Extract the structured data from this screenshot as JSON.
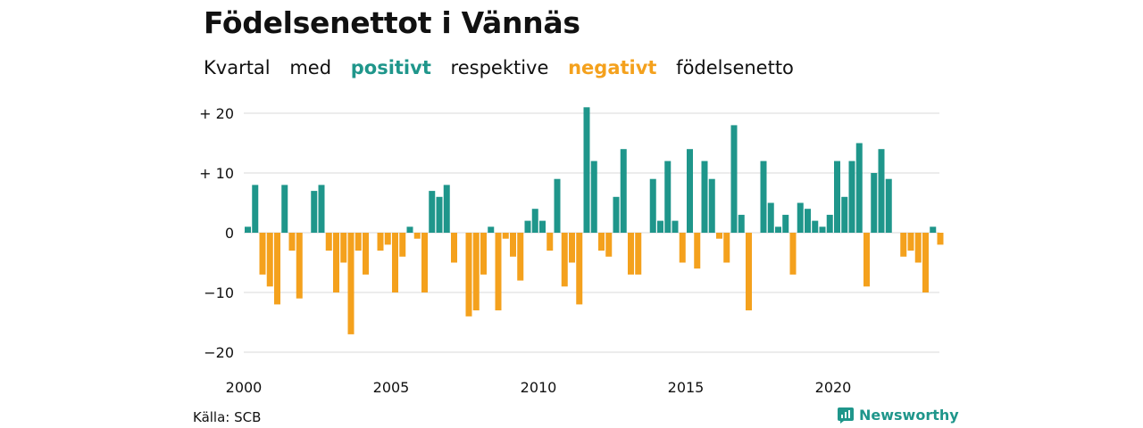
{
  "colors": {
    "positive": "#1f968b",
    "negative": "#f4a11d",
    "grid": "#d9d9d9",
    "axis_text": "#111111",
    "brand": "#1f968b"
  },
  "header": {
    "title": "Födelsenettot i Vännäs",
    "subtitle": {
      "part1": "Kvartal",
      "part2": "med",
      "positive": "positivt",
      "part3": "respektive",
      "negative": "negativt",
      "part4": "födelsenetto"
    }
  },
  "footer": {
    "source": "Källa: SCB",
    "brand": "Newsworthy",
    "brand_icon": "newsworthy-logo-icon"
  },
  "chart_data": {
    "type": "bar",
    "title": "Födelsenettot i Vännäs",
    "subtitle": "Kvartal med positivt respektive negativt födelsenetto",
    "xlabel": "",
    "ylabel": "",
    "x_start": "2000 Q1",
    "x_ticks": [
      "2000",
      "2005",
      "2010",
      "2015",
      "2020"
    ],
    "y_ticks": [
      {
        "value": 20,
        "label": "+ 20"
      },
      {
        "value": 10,
        "label": "+ 10"
      },
      {
        "value": 0,
        "label": "0"
      },
      {
        "value": -10,
        "label": "−10"
      },
      {
        "value": -20,
        "label": "−20"
      }
    ],
    "ylim": [
      -21,
      21
    ],
    "grid": true,
    "values": [
      1,
      8,
      -7,
      -9,
      -12,
      8,
      -3,
      -11,
      0,
      7,
      8,
      -3,
      -10,
      -5,
      -17,
      -3,
      -7,
      0,
      -3,
      -2,
      -10,
      -4,
      1,
      -1,
      -10,
      7,
      6,
      8,
      -5,
      0,
      -14,
      -13,
      -7,
      1,
      -13,
      -1,
      -4,
      -8,
      2,
      4,
      2,
      -3,
      9,
      -9,
      -5,
      -12,
      21,
      12,
      -3,
      -4,
      6,
      14,
      -7,
      -7,
      0,
      9,
      2,
      12,
      2,
      -5,
      14,
      -6,
      12,
      9,
      -1,
      -5,
      18,
      3,
      -13,
      0,
      12,
      5,
      1,
      3,
      -7,
      5,
      4,
      2,
      1,
      3,
      12,
      6,
      12,
      15,
      -9,
      10,
      14,
      9,
      0,
      -4,
      -3,
      -5,
      -10,
      1,
      -2
    ]
  }
}
